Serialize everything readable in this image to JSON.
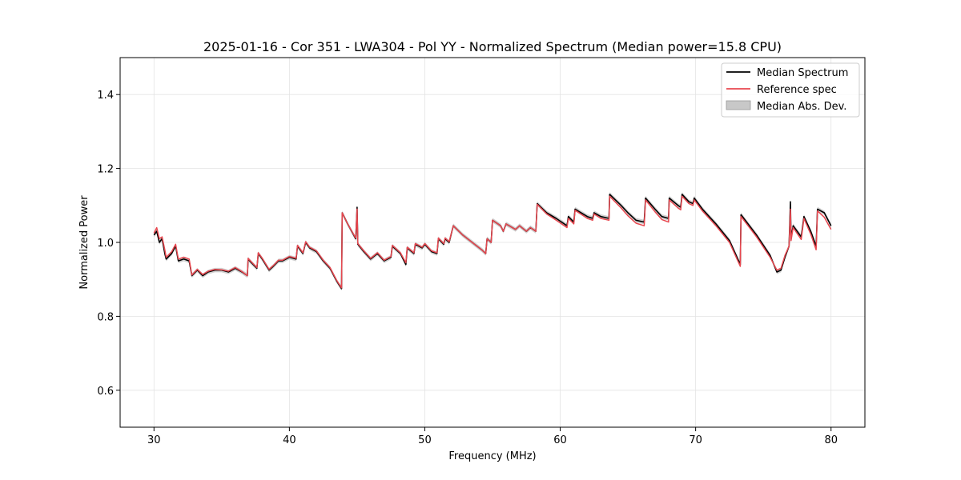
{
  "chart_data": {
    "type": "line",
    "title": "2025-01-16 - Cor 351 - LWA304 - Pol YY - Normalized Spectrum (Median power=15.8 CPU)",
    "xlabel": "Frequency (MHz)",
    "ylabel": "Normalized Power",
    "xlim": [
      27.5,
      82.5
    ],
    "ylim": [
      0.5,
      1.5
    ],
    "xticks": [
      30,
      40,
      50,
      60,
      70,
      80
    ],
    "yticks": [
      0.6,
      0.8,
      1.0,
      1.2,
      1.4
    ],
    "xtick_labels": [
      "30",
      "40",
      "50",
      "60",
      "70",
      "80"
    ],
    "ytick_labels": [
      "0.6",
      "0.8",
      "1.0",
      "1.2",
      "1.4"
    ],
    "grid": true,
    "legend_position": "top-right",
    "mad_width": 0.006,
    "series": [
      {
        "name": "Median Spectrum",
        "color": "#000000",
        "points": [
          [
            30.0,
            1.02
          ],
          [
            30.2,
            1.03
          ],
          [
            30.4,
            1.0
          ],
          [
            30.6,
            1.01
          ],
          [
            30.8,
            0.97
          ],
          [
            30.9,
            0.955
          ],
          [
            31.3,
            0.97
          ],
          [
            31.6,
            0.99
          ],
          [
            31.8,
            0.95
          ],
          [
            32.2,
            0.955
          ],
          [
            32.6,
            0.95
          ],
          [
            32.8,
            0.91
          ],
          [
            33.2,
            0.925
          ],
          [
            33.6,
            0.91
          ],
          [
            34.0,
            0.92
          ],
          [
            34.5,
            0.925
          ],
          [
            35.0,
            0.925
          ],
          [
            35.5,
            0.92
          ],
          [
            36.0,
            0.93
          ],
          [
            36.5,
            0.92
          ],
          [
            36.9,
            0.91
          ],
          [
            36.95,
            0.955
          ],
          [
            37.2,
            0.945
          ],
          [
            37.6,
            0.93
          ],
          [
            37.7,
            0.97
          ],
          [
            38.0,
            0.955
          ],
          [
            38.5,
            0.925
          ],
          [
            38.8,
            0.935
          ],
          [
            39.2,
            0.95
          ],
          [
            39.5,
            0.95
          ],
          [
            40.0,
            0.96
          ],
          [
            40.5,
            0.955
          ],
          [
            40.6,
            0.99
          ],
          [
            41.0,
            0.97
          ],
          [
            41.2,
            1.0
          ],
          [
            41.5,
            0.985
          ],
          [
            42.0,
            0.975
          ],
          [
            42.5,
            0.95
          ],
          [
            43.0,
            0.93
          ],
          [
            43.5,
            0.895
          ],
          [
            43.85,
            0.875
          ],
          [
            43.9,
            1.08
          ],
          [
            44.3,
            1.05
          ],
          [
            44.9,
            1.01
          ],
          [
            45.0,
            1.095
          ],
          [
            45.05,
            0.995
          ],
          [
            45.5,
            0.975
          ],
          [
            46.0,
            0.955
          ],
          [
            46.5,
            0.97
          ],
          [
            47.0,
            0.95
          ],
          [
            47.5,
            0.96
          ],
          [
            47.6,
            0.99
          ],
          [
            48.2,
            0.97
          ],
          [
            48.6,
            0.94
          ],
          [
            48.7,
            0.985
          ],
          [
            49.2,
            0.97
          ],
          [
            49.3,
            0.995
          ],
          [
            49.8,
            0.985
          ],
          [
            50.0,
            0.995
          ],
          [
            50.5,
            0.975
          ],
          [
            50.9,
            0.97
          ],
          [
            51.0,
            1.01
          ],
          [
            51.4,
            0.995
          ],
          [
            51.5,
            1.01
          ],
          [
            51.8,
            1.0
          ],
          [
            52.1,
            1.045
          ],
          [
            52.8,
            1.02
          ],
          [
            53.5,
            1.0
          ],
          [
            54.2,
            0.98
          ],
          [
            54.5,
            0.97
          ],
          [
            54.6,
            1.01
          ],
          [
            54.9,
            1.0
          ],
          [
            55.0,
            1.06
          ],
          [
            55.6,
            1.045
          ],
          [
            55.8,
            1.03
          ],
          [
            56.0,
            1.05
          ],
          [
            56.7,
            1.035
          ],
          [
            57.0,
            1.045
          ],
          [
            57.5,
            1.03
          ],
          [
            57.8,
            1.04
          ],
          [
            58.2,
            1.03
          ],
          [
            58.3,
            1.105
          ],
          [
            59.0,
            1.08
          ],
          [
            59.7,
            1.065
          ],
          [
            60.5,
            1.045
          ],
          [
            60.6,
            1.07
          ],
          [
            61.0,
            1.055
          ],
          [
            61.1,
            1.09
          ],
          [
            62.0,
            1.07
          ],
          [
            62.4,
            1.065
          ],
          [
            62.5,
            1.08
          ],
          [
            63.0,
            1.07
          ],
          [
            63.6,
            1.065
          ],
          [
            63.65,
            1.13
          ],
          [
            64.5,
            1.1
          ],
          [
            65.0,
            1.08
          ],
          [
            65.6,
            1.06
          ],
          [
            66.2,
            1.055
          ],
          [
            66.3,
            1.12
          ],
          [
            67.0,
            1.09
          ],
          [
            67.5,
            1.07
          ],
          [
            68.0,
            1.065
          ],
          [
            68.05,
            1.12
          ],
          [
            68.7,
            1.1
          ],
          [
            68.9,
            1.095
          ],
          [
            69.0,
            1.13
          ],
          [
            69.5,
            1.11
          ],
          [
            69.8,
            1.105
          ],
          [
            69.9,
            1.12
          ],
          [
            70.5,
            1.09
          ],
          [
            71.5,
            1.05
          ],
          [
            72.5,
            1.005
          ],
          [
            73.3,
            0.94
          ],
          [
            73.35,
            1.075
          ],
          [
            74.5,
            1.02
          ],
          [
            75.5,
            0.965
          ],
          [
            76.0,
            0.92
          ],
          [
            76.3,
            0.925
          ],
          [
            76.6,
            0.96
          ],
          [
            76.9,
            0.99
          ],
          [
            77.0,
            1.11
          ],
          [
            77.05,
            1.01
          ],
          [
            77.2,
            1.045
          ],
          [
            77.8,
            1.015
          ],
          [
            78.0,
            1.07
          ],
          [
            78.5,
            1.03
          ],
          [
            78.9,
            0.99
          ],
          [
            79.0,
            1.09
          ],
          [
            79.5,
            1.08
          ],
          [
            80.0,
            1.045
          ]
        ]
      },
      {
        "name": "Reference spec",
        "color": "#e8474f",
        "points": [
          [
            30.0,
            1.025
          ],
          [
            30.2,
            1.04
          ],
          [
            30.4,
            1.01
          ],
          [
            30.6,
            1.015
          ],
          [
            30.8,
            0.98
          ],
          [
            30.9,
            0.96
          ],
          [
            31.3,
            0.975
          ],
          [
            31.6,
            0.995
          ],
          [
            31.8,
            0.955
          ],
          [
            32.2,
            0.96
          ],
          [
            32.6,
            0.955
          ],
          [
            32.8,
            0.912
          ],
          [
            33.2,
            0.927
          ],
          [
            33.6,
            0.913
          ],
          [
            34.0,
            0.922
          ],
          [
            34.5,
            0.927
          ],
          [
            35.0,
            0.926
          ],
          [
            35.5,
            0.922
          ],
          [
            36.0,
            0.932
          ],
          [
            36.5,
            0.921
          ],
          [
            36.9,
            0.91
          ],
          [
            36.95,
            0.957
          ],
          [
            37.2,
            0.947
          ],
          [
            37.6,
            0.932
          ],
          [
            37.7,
            0.972
          ],
          [
            38.0,
            0.957
          ],
          [
            38.5,
            0.927
          ],
          [
            38.8,
            0.937
          ],
          [
            39.2,
            0.952
          ],
          [
            39.5,
            0.952
          ],
          [
            40.0,
            0.962
          ],
          [
            40.5,
            0.957
          ],
          [
            40.6,
            0.992
          ],
          [
            41.0,
            0.972
          ],
          [
            41.2,
            1.002
          ],
          [
            41.5,
            0.987
          ],
          [
            42.0,
            0.977
          ],
          [
            42.5,
            0.952
          ],
          [
            43.0,
            0.932
          ],
          [
            43.5,
            0.897
          ],
          [
            43.85,
            0.877
          ],
          [
            43.9,
            1.08
          ],
          [
            44.3,
            1.05
          ],
          [
            44.9,
            1.012
          ],
          [
            45.0,
            1.09
          ],
          [
            45.05,
            0.997
          ],
          [
            45.5,
            0.977
          ],
          [
            46.0,
            0.957
          ],
          [
            46.5,
            0.972
          ],
          [
            47.0,
            0.952
          ],
          [
            47.5,
            0.962
          ],
          [
            47.6,
            0.992
          ],
          [
            48.2,
            0.972
          ],
          [
            48.6,
            0.945
          ],
          [
            48.7,
            0.987
          ],
          [
            49.2,
            0.972
          ],
          [
            49.3,
            0.997
          ],
          [
            49.8,
            0.987
          ],
          [
            50.0,
            0.997
          ],
          [
            50.5,
            0.977
          ],
          [
            50.9,
            0.972
          ],
          [
            51.0,
            1.012
          ],
          [
            51.4,
            0.997
          ],
          [
            51.5,
            1.012
          ],
          [
            51.8,
            1.002
          ],
          [
            52.1,
            1.045
          ],
          [
            52.8,
            1.02
          ],
          [
            53.5,
            1.0
          ],
          [
            54.2,
            0.98
          ],
          [
            54.5,
            0.97
          ],
          [
            54.6,
            1.01
          ],
          [
            54.9,
            1.0
          ],
          [
            55.0,
            1.06
          ],
          [
            55.6,
            1.045
          ],
          [
            55.8,
            1.03
          ],
          [
            56.0,
            1.05
          ],
          [
            56.7,
            1.035
          ],
          [
            57.0,
            1.045
          ],
          [
            57.5,
            1.03
          ],
          [
            57.8,
            1.04
          ],
          [
            58.2,
            1.03
          ],
          [
            58.3,
            1.103
          ],
          [
            59.0,
            1.077
          ],
          [
            59.7,
            1.06
          ],
          [
            60.5,
            1.04
          ],
          [
            60.6,
            1.065
          ],
          [
            61.0,
            1.05
          ],
          [
            61.1,
            1.087
          ],
          [
            62.0,
            1.065
          ],
          [
            62.4,
            1.06
          ],
          [
            62.5,
            1.077
          ],
          [
            63.0,
            1.065
          ],
          [
            63.6,
            1.06
          ],
          [
            63.65,
            1.125
          ],
          [
            64.5,
            1.093
          ],
          [
            65.0,
            1.072
          ],
          [
            65.6,
            1.052
          ],
          [
            66.2,
            1.045
          ],
          [
            66.3,
            1.115
          ],
          [
            67.0,
            1.083
          ],
          [
            67.5,
            1.062
          ],
          [
            68.0,
            1.055
          ],
          [
            68.05,
            1.115
          ],
          [
            68.7,
            1.093
          ],
          [
            68.9,
            1.088
          ],
          [
            69.0,
            1.125
          ],
          [
            69.5,
            1.105
          ],
          [
            69.8,
            1.1
          ],
          [
            69.9,
            1.115
          ],
          [
            70.5,
            1.085
          ],
          [
            71.5,
            1.045
          ],
          [
            72.5,
            1.0
          ],
          [
            73.3,
            0.935
          ],
          [
            73.35,
            1.07
          ],
          [
            74.5,
            1.015
          ],
          [
            75.5,
            0.96
          ],
          [
            76.0,
            0.925
          ],
          [
            76.3,
            0.93
          ],
          [
            76.6,
            0.965
          ],
          [
            76.9,
            0.99
          ],
          [
            77.0,
            1.09
          ],
          [
            77.05,
            1.005
          ],
          [
            77.2,
            1.04
          ],
          [
            77.8,
            1.008
          ],
          [
            78.0,
            1.065
          ],
          [
            78.5,
            1.022
          ],
          [
            78.9,
            0.98
          ],
          [
            79.0,
            1.085
          ],
          [
            79.5,
            1.068
          ],
          [
            80.0,
            1.035
          ]
        ]
      }
    ],
    "legend": [
      {
        "label": "Median Spectrum",
        "kind": "line",
        "color": "#000000"
      },
      {
        "label": "Reference spec",
        "kind": "line",
        "color": "#e8474f"
      },
      {
        "label": "Median Abs. Dev.",
        "kind": "patch",
        "color": "#c8c8c8"
      }
    ]
  }
}
